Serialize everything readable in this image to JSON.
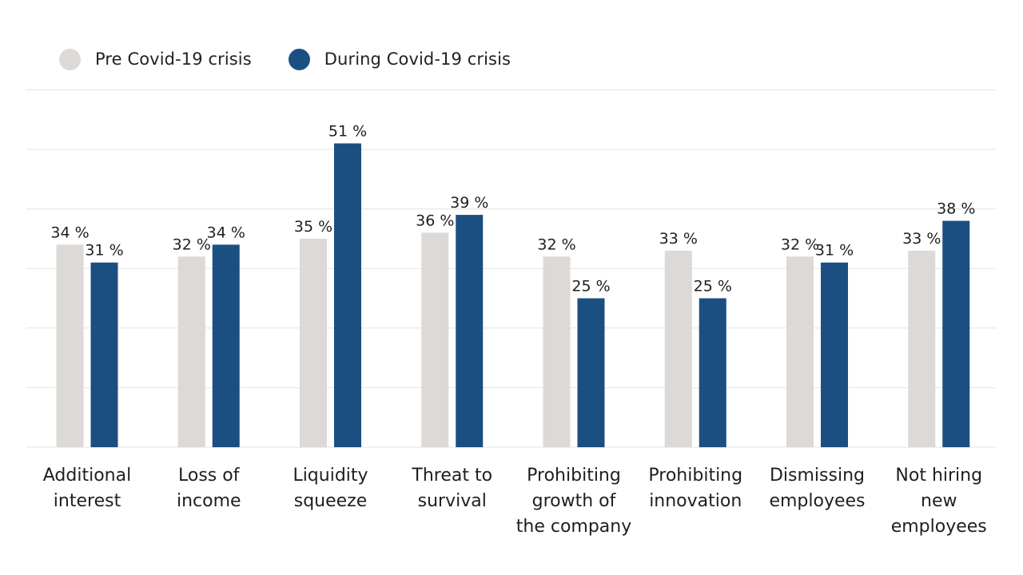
{
  "chart_data": {
    "type": "bar",
    "title": "",
    "xlabel": "",
    "ylabel": "",
    "ylim": [
      0,
      60
    ],
    "grid": true,
    "legend_position": "top-left",
    "unit_suffix": " %",
    "categories": [
      "Additional interest",
      "Loss of income",
      "Liquidity squeeze",
      "Threat to survival",
      "Prohibiting growth of the company",
      "Prohibiting innovation",
      "Dismissing employees",
      "Not hiring new employees"
    ],
    "category_lines": [
      [
        "Additional",
        "interest"
      ],
      [
        "Loss of",
        "income"
      ],
      [
        "Liquidity",
        "squeeze"
      ],
      [
        "Threat to",
        "survival"
      ],
      [
        "Prohibiting",
        "growth of",
        "the company"
      ],
      [
        "Prohibiting",
        "innovation"
      ],
      [
        "Dismissing",
        "employees"
      ],
      [
        "Not hiring",
        "new",
        "employees"
      ]
    ],
    "series": [
      {
        "name": "Pre Covid-19 crisis",
        "color": "#dcd9d6",
        "values": [
          34,
          32,
          35,
          36,
          32,
          33,
          32,
          33
        ]
      },
      {
        "name": "During Covid-19 crisis",
        "color": "#1b4f82",
        "values": [
          31,
          34,
          51,
          39,
          25,
          25,
          31,
          38
        ]
      }
    ]
  },
  "colors": {
    "grid": "#e3e3e3",
    "text": "#1f1f1f"
  }
}
